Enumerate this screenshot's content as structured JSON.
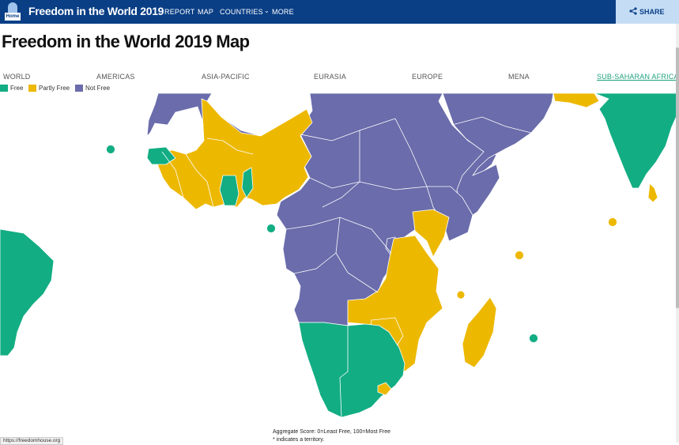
{
  "header": {
    "home_label": "Home",
    "site_title": "Freedom in the World 2019",
    "nav": [
      "REPORT",
      "MAP",
      "COUNTRIES",
      "MORE"
    ],
    "share_label": "SHARE",
    "colors": {
      "bar": "#0a3f86",
      "share_bg": "#c4ddf5"
    }
  },
  "page": {
    "title": "Freedom in the World 2019 Map"
  },
  "regions": {
    "tabs": [
      "WORLD",
      "AMERICAS",
      "ASIA-PACIFIC",
      "EURASIA",
      "EUROPE",
      "MENA",
      "SUB-SAHARAN AFRICA"
    ],
    "active": "SUB-SAHARAN AFRICA"
  },
  "legend": {
    "items": [
      {
        "label": "Free",
        "color": "#12ad83"
      },
      {
        "label": "Partly Free",
        "color": "#edb800"
      },
      {
        "label": "Not Free",
        "color": "#6a6cab"
      }
    ]
  },
  "map": {
    "region_shown": "Sub-Saharan Africa",
    "colors": {
      "free": "#12ad83",
      "partly_free": "#edb800",
      "not_free": "#6a6cab",
      "border": "#ffffff"
    }
  },
  "footer": {
    "aggregate_note": "Aggregate Score: 0=Least Free, 100=Most Free",
    "territory_note": "* indicates a territory.",
    "status_url": "https://freedomhouse.org"
  }
}
